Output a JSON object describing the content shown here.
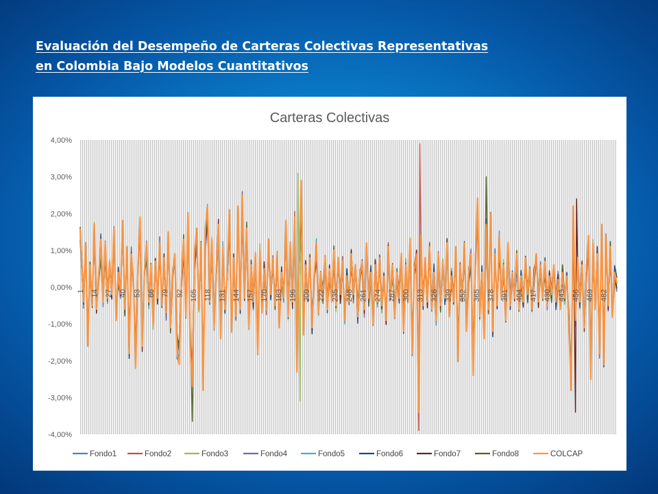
{
  "slide": {
    "title_line1": "Evaluación del Desempeño de Carteras Colectivas Representativas",
    "title_line2": "en Colombia Bajo Modelos Cuantitativos"
  },
  "chart_data": {
    "type": "line",
    "title": "Carteras Colectivas",
    "xlabel": "",
    "ylabel": "",
    "ylim": [
      -0.04,
      0.04
    ],
    "y_ticks": [
      "4,00%",
      "3,00%",
      "2,00%",
      "1,00%",
      "0,00%",
      "-1,00%",
      "-2,00%",
      "-3,00%",
      "-4,00%"
    ],
    "y_tick_values": [
      0.04,
      0.03,
      0.02,
      0.01,
      0,
      -0.01,
      -0.02,
      -0.03,
      -0.04
    ],
    "x_range": [
      1,
      494
    ],
    "x_ticks": [
      1,
      14,
      27,
      40,
      53,
      66,
      79,
      92,
      105,
      118,
      131,
      144,
      157,
      170,
      183,
      196,
      209,
      222,
      235,
      248,
      261,
      274,
      287,
      300,
      313,
      326,
      339,
      352,
      365,
      378,
      391,
      404,
      417,
      430,
      443,
      456,
      469,
      482
    ],
    "grid": "dense pattern fill",
    "legend_position": "bottom",
    "series": [
      {
        "name": "Fondo1",
        "color": "#4f81bd"
      },
      {
        "name": "Fondo2",
        "color": "#c0504d"
      },
      {
        "name": "Fondo3",
        "color": "#9bbb59"
      },
      {
        "name": "Fondo4",
        "color": "#8064a2"
      },
      {
        "name": "Fondo5",
        "color": "#4bacc6"
      },
      {
        "name": "Fondo6",
        "color": "#1f497d"
      },
      {
        "name": "Fondo7",
        "color": "#632523"
      },
      {
        "name": "Fondo8",
        "color": "#4f6228"
      },
      {
        "name": "COLCAP",
        "color": "#f79646"
      }
    ],
    "base_points": [
      [
        1,
        0.016
      ],
      [
        4,
        -0.004
      ],
      [
        6,
        0.012
      ],
      [
        8,
        -0.016
      ],
      [
        10,
        0.006
      ],
      [
        12,
        -0.005
      ],
      [
        14,
        0.017
      ],
      [
        16,
        -0.006
      ],
      [
        18,
        0.003
      ],
      [
        20,
        0.013
      ],
      [
        22,
        -0.004
      ],
      [
        24,
        0.012
      ],
      [
        26,
        -0.003
      ],
      [
        28,
        0.007
      ],
      [
        30,
        -0.002
      ],
      [
        32,
        0.016
      ],
      [
        34,
        -0.009
      ],
      [
        36,
        0.004
      ],
      [
        38,
        -0.002
      ],
      [
        40,
        0.018
      ],
      [
        42,
        -0.006
      ],
      [
        44,
        0.011
      ],
      [
        46,
        -0.018
      ],
      [
        48,
        0.009
      ],
      [
        50,
        0.001
      ],
      [
        52,
        -0.022
      ],
      [
        54,
        0.005
      ],
      [
        56,
        0.019
      ],
      [
        58,
        -0.016
      ],
      [
        60,
        0.004
      ],
      [
        62,
        0.012
      ],
      [
        64,
        -0.004
      ],
      [
        66,
        0.006
      ],
      [
        68,
        -0.01
      ],
      [
        70,
        0.007
      ],
      [
        72,
        -0.003
      ],
      [
        74,
        0.012
      ],
      [
        76,
        -0.005
      ],
      [
        78,
        0.008
      ],
      [
        80,
        -0.007
      ],
      [
        82,
        0.015
      ],
      [
        84,
        -0.011
      ],
      [
        86,
        0.004
      ],
      [
        88,
        0.009
      ],
      [
        90,
        -0.018
      ],
      [
        92,
        -0.021
      ],
      [
        94,
        0.002
      ],
      [
        96,
        0.013
      ],
      [
        98,
        -0.008
      ],
      [
        100,
        0.02
      ],
      [
        102,
        -0.015
      ],
      [
        104,
        -0.027
      ],
      [
        106,
        0.009
      ],
      [
        108,
        0.016
      ],
      [
        110,
        -0.006
      ],
      [
        112,
        0.012
      ],
      [
        114,
        -0.028
      ],
      [
        116,
        0.016
      ],
      [
        118,
        0.022
      ],
      [
        120,
        -0.004
      ],
      [
        122,
        0.013
      ],
      [
        124,
        -0.011
      ],
      [
        126,
        0.004
      ],
      [
        128,
        0.017
      ],
      [
        130,
        -0.014
      ],
      [
        132,
        0.011
      ],
      [
        134,
        -0.006
      ],
      [
        136,
        0.003
      ],
      [
        138,
        0.021
      ],
      [
        140,
        -0.012
      ],
      [
        142,
        0.008
      ],
      [
        144,
        -0.008
      ],
      [
        146,
        0.022
      ],
      [
        148,
        -0.006
      ],
      [
        150,
        0.025
      ],
      [
        152,
        -0.003
      ],
      [
        154,
        0.016
      ],
      [
        156,
        -0.011
      ],
      [
        158,
        0.006
      ],
      [
        160,
        -0.004
      ],
      [
        162,
        0.009
      ],
      [
        164,
        -0.018
      ],
      [
        166,
        0.01
      ],
      [
        168,
        -0.007
      ],
      [
        170,
        0.005
      ],
      [
        172,
        -0.006
      ],
      [
        174,
        0.013
      ],
      [
        176,
        -0.002
      ],
      [
        178,
        0.008
      ],
      [
        180,
        -0.005
      ],
      [
        182,
        0.009
      ],
      [
        184,
        -0.011
      ],
      [
        186,
        0.004
      ],
      [
        188,
        -0.003
      ],
      [
        190,
        0.018
      ],
      [
        192,
        -0.008
      ],
      [
        194,
        0.012
      ],
      [
        196,
        -0.004
      ],
      [
        198,
        0.019
      ],
      [
        200,
        -0.023
      ],
      [
        202,
        0.005
      ],
      [
        204,
        0.029
      ],
      [
        206,
        -0.013
      ],
      [
        208,
        0.006
      ],
      [
        210,
        -0.003
      ],
      [
        212,
        0.008
      ],
      [
        214,
        -0.011
      ],
      [
        216,
        0.003
      ],
      [
        218,
        0.012
      ],
      [
        220,
        -0.007
      ],
      [
        222,
        0.004
      ],
      [
        224,
        -0.003
      ],
      [
        226,
        0.008
      ],
      [
        228,
        -0.006
      ],
      [
        230,
        0.005
      ],
      [
        232,
        -0.004
      ],
      [
        234,
        0.01
      ],
      [
        236,
        -0.005
      ],
      [
        238,
        0.008
      ],
      [
        240,
        -0.002
      ],
      [
        242,
        0.007
      ],
      [
        244,
        -0.009
      ],
      [
        246,
        0.003
      ],
      [
        248,
        -0.004
      ],
      [
        250,
        0.009
      ],
      [
        252,
        -0.002
      ],
      [
        254,
        0.006
      ],
      [
        256,
        -0.008
      ],
      [
        258,
        0.003
      ],
      [
        260,
        0.007
      ],
      [
        262,
        -0.006
      ],
      [
        264,
        0.012
      ],
      [
        266,
        -0.003
      ],
      [
        268,
        0.004
      ],
      [
        270,
        -0.01
      ],
      [
        272,
        0.006
      ],
      [
        274,
        -0.004
      ],
      [
        276,
        0.008
      ],
      [
        278,
        -0.005
      ],
      [
        280,
        0.003
      ],
      [
        282,
        -0.009
      ],
      [
        284,
        0.011
      ],
      [
        286,
        -0.003
      ],
      [
        288,
        0.006
      ],
      [
        290,
        -0.008
      ],
      [
        292,
        0.004
      ],
      [
        294,
        -0.003
      ],
      [
        296,
        0.009
      ],
      [
        298,
        -0.012
      ],
      [
        300,
        0.006
      ],
      [
        302,
        -0.004
      ],
      [
        304,
        0.013
      ],
      [
        306,
        -0.018
      ],
      [
        308,
        0.005
      ],
      [
        310,
        0.009
      ],
      [
        312,
        -0.034
      ],
      [
        314,
        0.014
      ],
      [
        316,
        -0.005
      ],
      [
        318,
        0.008
      ],
      [
        320,
        -0.004
      ],
      [
        322,
        0.011
      ],
      [
        324,
        -0.006
      ],
      [
        326,
        0.004
      ],
      [
        328,
        -0.009
      ],
      [
        330,
        0.009
      ],
      [
        332,
        -0.005
      ],
      [
        334,
        0.007
      ],
      [
        336,
        -0.003
      ],
      [
        338,
        0.012
      ],
      [
        340,
        -0.008
      ],
      [
        342,
        0.003
      ],
      [
        344,
        -0.004
      ],
      [
        346,
        0.011
      ],
      [
        348,
        -0.02
      ],
      [
        350,
        0.006
      ],
      [
        352,
        -0.003
      ],
      [
        354,
        0.012
      ],
      [
        356,
        -0.012
      ],
      [
        358,
        0.004
      ],
      [
        360,
        0.009
      ],
      [
        362,
        -0.024
      ],
      [
        364,
        0.007
      ],
      [
        366,
        0.024
      ],
      [
        368,
        -0.008
      ],
      [
        370,
        0.004
      ],
      [
        372,
        -0.014
      ],
      [
        374,
        0.017
      ],
      [
        376,
        -0.006
      ],
      [
        378,
        0.02
      ],
      [
        380,
        -0.012
      ],
      [
        382,
        0.009
      ],
      [
        384,
        -0.005
      ],
      [
        386,
        0.014
      ],
      [
        388,
        -0.003
      ],
      [
        390,
        0.006
      ],
      [
        392,
        -0.009
      ],
      [
        394,
        0.012
      ],
      [
        396,
        -0.005
      ],
      [
        398,
        0.004
      ],
      [
        400,
        -0.003
      ],
      [
        402,
        0.009
      ],
      [
        404,
        -0.006
      ],
      [
        406,
        0.003
      ],
      [
        408,
        -0.004
      ],
      [
        410,
        0.008
      ],
      [
        412,
        -0.002
      ],
      [
        414,
        0.005
      ],
      [
        416,
        -0.006
      ],
      [
        418,
        0.003
      ],
      [
        420,
        0.009
      ],
      [
        422,
        -0.004
      ],
      [
        424,
        0.006
      ],
      [
        426,
        -0.003
      ],
      [
        428,
        0.007
      ],
      [
        430,
        -0.005
      ],
      [
        432,
        0.003
      ],
      [
        434,
        -0.002
      ],
      [
        436,
        0.006
      ],
      [
        438,
        -0.004
      ],
      [
        440,
        0.002
      ],
      [
        442,
        -0.006
      ],
      [
        444,
        0.004
      ],
      [
        446,
        -0.003
      ],
      [
        448,
        0.003
      ],
      [
        450,
        -0.011
      ],
      [
        452,
        -0.028
      ],
      [
        454,
        0.022
      ],
      [
        456,
        -0.009
      ],
      [
        458,
        0.008
      ],
      [
        460,
        -0.004
      ],
      [
        462,
        0.006
      ],
      [
        464,
        -0.011
      ],
      [
        466,
        0.004
      ],
      [
        468,
        0.014
      ],
      [
        470,
        -0.025
      ],
      [
        472,
        0.012
      ],
      [
        474,
        -0.006
      ],
      [
        476,
        0.009
      ],
      [
        478,
        -0.018
      ],
      [
        480,
        0.017
      ],
      [
        482,
        -0.021
      ],
      [
        484,
        0.014
      ],
      [
        486,
        -0.005
      ],
      [
        488,
        0.011
      ],
      [
        490,
        -0.008
      ],
      [
        492,
        0.004
      ],
      [
        494,
        0.001
      ]
    ],
    "annotated_extremes": [
      {
        "series": "Fondo2",
        "x": 313,
        "y": 0.039
      },
      {
        "series": "Fondo2",
        "x": 312,
        "y": -0.039
      },
      {
        "series": "Fondo8",
        "x": 104,
        "y": -0.0365
      },
      {
        "series": "Fondo8",
        "x": 374,
        "y": 0.03
      },
      {
        "series": "Fondo3",
        "x": 201,
        "y": 0.031
      },
      {
        "series": "Fondo3",
        "x": 203,
        "y": -0.031
      },
      {
        "series": "Fondo7",
        "x": 456,
        "y": -0.034
      },
      {
        "series": "Fondo7",
        "x": 457,
        "y": 0.024
      }
    ]
  }
}
